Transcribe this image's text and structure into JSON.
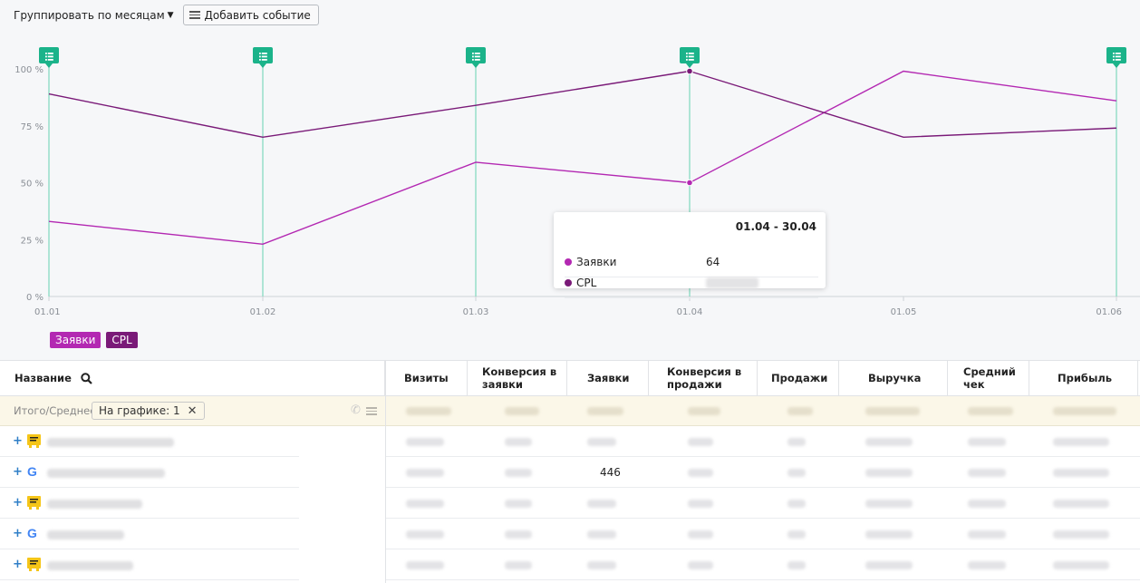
{
  "toolbar": {
    "group_by_label": "Группировать по месяцам",
    "add_event_label": "Добавить событие"
  },
  "chart_data": {
    "type": "line",
    "x": [
      "01.01",
      "01.02",
      "01.03",
      "01.04",
      "01.05",
      "01.06"
    ],
    "ytick_labels": [
      "100 %",
      "75 %",
      "50 %",
      "25 %",
      "0 %"
    ],
    "ylim": [
      0,
      100
    ],
    "series": [
      {
        "name": "Заявки",
        "color": "#b328b2",
        "values": [
          33,
          23,
          59,
          50,
          99,
          86
        ]
      },
      {
        "name": "CPL",
        "color": "#7a1a78",
        "values": [
          89,
          70,
          84,
          99,
          70,
          74
        ]
      }
    ],
    "event_markers_at": [
      "01.01",
      "01.02",
      "01.03",
      "01.04",
      "01.06"
    ],
    "tooltip": {
      "period": "01.04 - 30.04",
      "rows": [
        {
          "label": "Заявки",
          "value": "64"
        },
        {
          "label": "CPL",
          "value": ""
        }
      ]
    }
  },
  "table": {
    "name_header": "Название",
    "columns": [
      "Визиты",
      "Конверсия в заявки",
      "Заявки",
      "Конверсия в продажи",
      "Продажи",
      "Выручка",
      "Средний чек",
      "Прибыль"
    ],
    "total_label": "Итого/Среднее",
    "chip_label": "На графике: 1",
    "visible_cell_value": "446",
    "rows": [
      {
        "source_icon": "yandex-icon"
      },
      {
        "source_icon": "google-icon"
      },
      {
        "source_icon": "yandex-icon"
      },
      {
        "source_icon": "google-icon"
      },
      {
        "source_icon": "yandex-icon"
      }
    ]
  },
  "colors": {
    "event_marker": "#1bb38a",
    "series_zayavki": "#b328b2",
    "series_cpl": "#7a1a78"
  }
}
